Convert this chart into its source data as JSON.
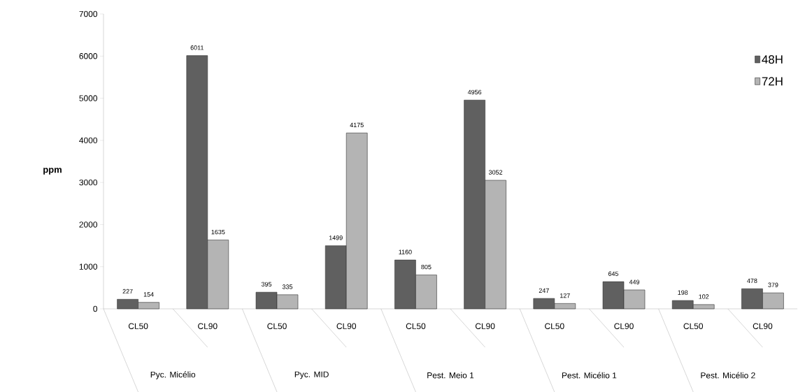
{
  "chart_data": {
    "type": "bar",
    "ylabel": "ppm",
    "categories": [
      "CL50",
      "CL90",
      "CL50",
      "CL90",
      "CL50",
      "CL90",
      "CL50",
      "CL90",
      "CL50",
      "CL90"
    ],
    "series": [
      {
        "name": "48H",
        "color": "#606060",
        "values": [
          227,
          6011,
          395,
          1499,
          1160,
          4956,
          247,
          645,
          198,
          478
        ]
      },
      {
        "name": "72H",
        "color": "#b4b4b4",
        "values": [
          154,
          1635,
          335,
          4175,
          805,
          3052,
          127,
          449,
          102,
          379
        ]
      }
    ],
    "annotations": [
      "Pyc. Micélio",
      "Pyc. MID",
      "Pest. Meio 1",
      "Pest. Micélio 1",
      "Pest. Micélio 2"
    ],
    "ylim": [
      0,
      7000
    ],
    "yticks": [
      0,
      1000,
      2000,
      3000,
      4000,
      5000,
      6000,
      7000
    ],
    "data_labels": true,
    "legend": "top right",
    "grid": false
  }
}
